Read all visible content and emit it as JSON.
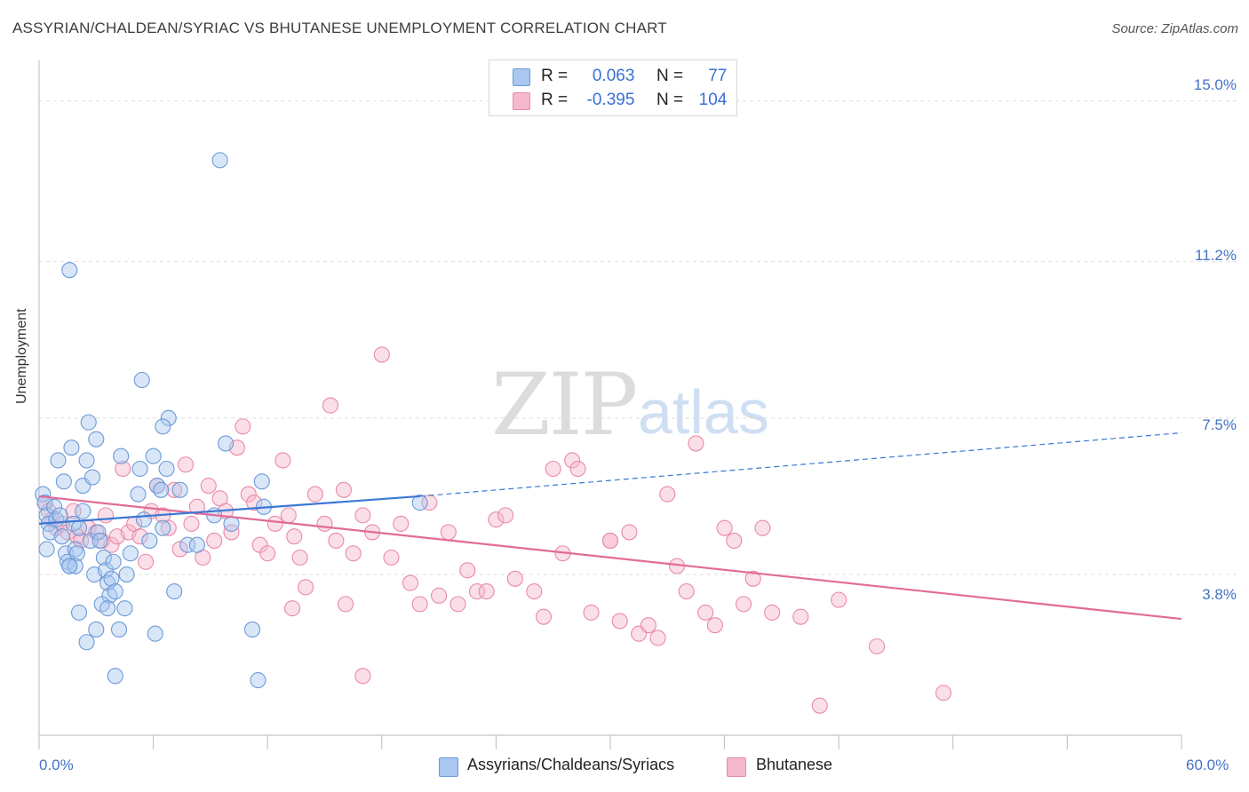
{
  "title": "ASSYRIAN/CHALDEAN/SYRIAC VS BHUTANESE UNEMPLOYMENT CORRELATION CHART",
  "source": "Source: ZipAtlas.com",
  "watermark": {
    "zip": "ZIP",
    "atlas": "atlas"
  },
  "legend": {
    "rows": [
      {
        "r_label": "R =",
        "r_value": "0.063",
        "n_label": "N =",
        "n_value": "77"
      },
      {
        "r_label": "R =",
        "r_value": "-0.395",
        "n_label": "N =",
        "n_value": "104"
      }
    ]
  },
  "bottom_legend": [
    "Assyrians/Chaldeans/Syriacs",
    "Bhutanese"
  ],
  "colors": {
    "blue_fill": "#a9c7f0",
    "blue_stroke": "#6c9ad8",
    "blue_line": "#3a78d4",
    "pink_fill": "#f6b8cc",
    "pink_stroke": "#e98aa8",
    "pink_line": "#e26b98",
    "grid": "#dddddd",
    "axis": "#bbbbbb",
    "tick_text": "#4472c4"
  },
  "chart_data": {
    "type": "scatter",
    "title": "ASSYRIAN/CHALDEAN/SYRIAC VS BHUTANESE UNEMPLOYMENT CORRELATION CHART",
    "xlabel": "",
    "ylabel": "Unemployment",
    "xlim": [
      0,
      60
    ],
    "ylim": [
      0,
      15.75
    ],
    "x_tick_labels": [
      "0.0%",
      "60.0%"
    ],
    "y_ticks": [
      3.8,
      7.5,
      11.2,
      15.0
    ],
    "y_tick_labels": [
      "3.8%",
      "7.5%",
      "11.2%",
      "15.0%"
    ],
    "series": [
      {
        "name": "Assyrians/Chaldeans/Syriacs",
        "r": 0.063,
        "n": 77,
        "trend": {
          "x0": 0,
          "y0": 5.0,
          "x1": 20.0,
          "y1": 5.65,
          "dash_x1": 60,
          "dash_y1": 7.15
        },
        "points": [
          [
            0.2,
            5.7
          ],
          [
            0.3,
            5.5
          ],
          [
            0.4,
            5.2
          ],
          [
            0.5,
            5.0
          ],
          [
            0.6,
            4.8
          ],
          [
            0.4,
            4.4
          ],
          [
            0.8,
            5.4
          ],
          [
            0.9,
            5.1
          ],
          [
            1.0,
            6.5
          ],
          [
            1.1,
            5.2
          ],
          [
            1.2,
            4.7
          ],
          [
            1.3,
            6.0
          ],
          [
            1.4,
            4.3
          ],
          [
            1.5,
            4.1
          ],
          [
            1.6,
            4.0
          ],
          [
            1.7,
            6.8
          ],
          [
            1.8,
            5.0
          ],
          [
            1.9,
            4.4
          ],
          [
            2.0,
            4.3
          ],
          [
            2.1,
            4.9
          ],
          [
            2.3,
            5.9
          ],
          [
            2.5,
            6.5
          ],
          [
            2.6,
            7.4
          ],
          [
            2.7,
            4.6
          ],
          [
            2.8,
            6.1
          ],
          [
            2.9,
            3.8
          ],
          [
            3.0,
            7.0
          ],
          [
            3.1,
            4.8
          ],
          [
            3.2,
            4.6
          ],
          [
            3.4,
            4.2
          ],
          [
            3.5,
            3.9
          ],
          [
            3.6,
            3.6
          ],
          [
            3.7,
            3.3
          ],
          [
            3.8,
            3.7
          ],
          [
            3.9,
            4.1
          ],
          [
            4.0,
            3.4
          ],
          [
            4.3,
            6.6
          ],
          [
            4.5,
            3.0
          ],
          [
            3.3,
            3.1
          ],
          [
            3.6,
            3.0
          ],
          [
            4.2,
            2.5
          ],
          [
            4.6,
            3.8
          ],
          [
            4.8,
            4.3
          ],
          [
            2.5,
            2.2
          ],
          [
            2.1,
            2.9
          ],
          [
            3.0,
            2.5
          ],
          [
            5.2,
            5.7
          ],
          [
            5.5,
            5.1
          ],
          [
            5.8,
            4.6
          ],
          [
            5.3,
            6.3
          ],
          [
            6.0,
            6.6
          ],
          [
            6.2,
            5.9
          ],
          [
            6.4,
            5.8
          ],
          [
            6.5,
            4.9
          ],
          [
            6.8,
            7.5
          ],
          [
            7.1,
            3.4
          ],
          [
            7.4,
            5.8
          ],
          [
            7.8,
            4.5
          ],
          [
            5.4,
            8.4
          ],
          [
            6.5,
            7.3
          ],
          [
            6.7,
            6.3
          ],
          [
            8.3,
            4.5
          ],
          [
            9.2,
            5.2
          ],
          [
            9.5,
            13.6
          ],
          [
            9.8,
            6.9
          ],
          [
            10.1,
            5.0
          ],
          [
            11.2,
            2.5
          ],
          [
            11.5,
            1.3
          ],
          [
            11.8,
            5.4
          ],
          [
            11.7,
            6.0
          ],
          [
            1.6,
            11.0
          ],
          [
            1.9,
            4.0
          ],
          [
            4.0,
            1.4
          ],
          [
            2.3,
            5.3
          ],
          [
            20.0,
            5.5
          ],
          [
            6.1,
            2.4
          ],
          [
            1.6,
            4.0
          ]
        ]
      },
      {
        "name": "Bhutanese",
        "r": -0.395,
        "n": 104,
        "trend": {
          "x0": 0,
          "y0": 5.65,
          "x1": 60,
          "y1": 2.75
        },
        "points": [
          [
            0.3,
            5.5
          ],
          [
            0.5,
            5.3
          ],
          [
            0.7,
            5.1
          ],
          [
            0.9,
            4.9
          ],
          [
            1.2,
            5.0
          ],
          [
            1.5,
            4.8
          ],
          [
            1.8,
            5.3
          ],
          [
            2.0,
            4.7
          ],
          [
            2.2,
            4.6
          ],
          [
            2.6,
            4.9
          ],
          [
            3.0,
            4.8
          ],
          [
            3.3,
            4.6
          ],
          [
            3.5,
            5.2
          ],
          [
            3.8,
            4.5
          ],
          [
            4.1,
            4.7
          ],
          [
            4.4,
            6.3
          ],
          [
            4.7,
            4.8
          ],
          [
            5.0,
            5.0
          ],
          [
            5.3,
            4.7
          ],
          [
            5.6,
            4.1
          ],
          [
            5.9,
            5.3
          ],
          [
            6.2,
            5.9
          ],
          [
            6.5,
            5.2
          ],
          [
            6.8,
            4.9
          ],
          [
            7.1,
            5.8
          ],
          [
            7.4,
            4.4
          ],
          [
            7.7,
            6.4
          ],
          [
            8.0,
            5.0
          ],
          [
            8.3,
            5.4
          ],
          [
            8.6,
            4.2
          ],
          [
            8.9,
            5.9
          ],
          [
            9.2,
            4.6
          ],
          [
            9.5,
            5.6
          ],
          [
            9.8,
            5.3
          ],
          [
            10.1,
            4.8
          ],
          [
            10.4,
            6.8
          ],
          [
            10.7,
            7.3
          ],
          [
            11.0,
            5.7
          ],
          [
            11.3,
            5.5
          ],
          [
            11.6,
            4.5
          ],
          [
            12.0,
            4.3
          ],
          [
            12.4,
            5.0
          ],
          [
            12.8,
            6.5
          ],
          [
            13.1,
            5.2
          ],
          [
            13.4,
            4.7
          ],
          [
            13.7,
            4.2
          ],
          [
            14.0,
            3.5
          ],
          [
            14.5,
            5.7
          ],
          [
            15.0,
            5.0
          ],
          [
            15.3,
            7.8
          ],
          [
            15.6,
            4.6
          ],
          [
            16.0,
            5.8
          ],
          [
            16.5,
            4.3
          ],
          [
            17.0,
            5.2
          ],
          [
            17.5,
            4.8
          ],
          [
            18.0,
            9.0
          ],
          [
            18.5,
            4.2
          ],
          [
            19.0,
            5.0
          ],
          [
            19.5,
            3.6
          ],
          [
            20.0,
            3.1
          ],
          [
            20.5,
            5.5
          ],
          [
            21.0,
            3.3
          ],
          [
            21.5,
            4.8
          ],
          [
            22.0,
            3.1
          ],
          [
            22.5,
            3.9
          ],
          [
            23.0,
            3.4
          ],
          [
            23.5,
            3.4
          ],
          [
            24.0,
            5.1
          ],
          [
            24.5,
            5.2
          ],
          [
            25.0,
            3.7
          ],
          [
            26.0,
            3.4
          ],
          [
            26.5,
            2.8
          ],
          [
            27.0,
            6.3
          ],
          [
            27.5,
            4.3
          ],
          [
            28.0,
            6.5
          ],
          [
            28.3,
            6.3
          ],
          [
            29.0,
            2.9
          ],
          [
            30.0,
            4.6
          ],
          [
            30.5,
            2.7
          ],
          [
            31.0,
            4.8
          ],
          [
            31.5,
            2.4
          ],
          [
            32.0,
            2.6
          ],
          [
            32.5,
            2.3
          ],
          [
            33.0,
            5.7
          ],
          [
            33.5,
            4.0
          ],
          [
            34.0,
            3.4
          ],
          [
            34.5,
            6.9
          ],
          [
            35.0,
            2.9
          ],
          [
            35.5,
            2.6
          ],
          [
            36.0,
            4.9
          ],
          [
            36.5,
            4.6
          ],
          [
            37.0,
            3.1
          ],
          [
            37.5,
            3.7
          ],
          [
            38.0,
            4.9
          ],
          [
            38.5,
            2.9
          ],
          [
            40.0,
            2.8
          ],
          [
            41.0,
            0.7
          ],
          [
            42.0,
            3.2
          ],
          [
            44.0,
            2.1
          ],
          [
            47.5,
            1.0
          ],
          [
            13.3,
            3.0
          ],
          [
            16.1,
            3.1
          ],
          [
            17.0,
            1.4
          ],
          [
            30.0,
            4.6
          ]
        ]
      }
    ]
  }
}
